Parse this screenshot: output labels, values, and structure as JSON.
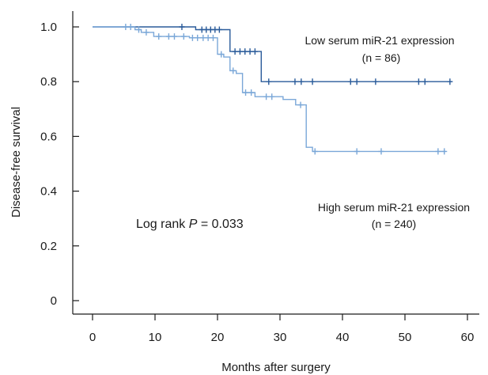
{
  "chart_data": {
    "type": "line",
    "xlabel": "Months after surgery",
    "ylabel": "Disease-free survival",
    "xlim": [
      0,
      60
    ],
    "ylim": [
      0,
      1.0
    ],
    "xticks": [
      0,
      10,
      20,
      30,
      40,
      50,
      60
    ],
    "yticks": [
      {
        "value": 0,
        "label": "0"
      },
      {
        "value": 0.2,
        "label": "0.2"
      },
      {
        "value": 0.4,
        "label": "0.4"
      },
      {
        "value": 0.6,
        "label": "0.6"
      },
      {
        "value": 0.8,
        "label": "0.8"
      },
      {
        "value": 1.0,
        "label": "1.0"
      }
    ],
    "grid": false,
    "annotations": {
      "logrank_prefix": "Log rank ",
      "logrank_p": "P",
      "logrank_suffix": " = 0.033"
    },
    "series": [
      {
        "name": "Low serum miR-21 expression",
        "n_label": "(n = 86)",
        "color": "#2a5b9a",
        "steps": [
          [
            0,
            1.0
          ],
          [
            16.5,
            1.0
          ],
          [
            16.5,
            0.99
          ],
          [
            22,
            0.99
          ],
          [
            22,
            0.91
          ],
          [
            27,
            0.91
          ],
          [
            27,
            0.8
          ],
          [
            57.5,
            0.8
          ]
        ],
        "censors": [
          [
            14.3,
            1.0
          ],
          [
            17.5,
            0.99
          ],
          [
            18.2,
            0.99
          ],
          [
            18.9,
            0.99
          ],
          [
            19.6,
            0.99
          ],
          [
            20.3,
            0.99
          ],
          [
            22.8,
            0.91
          ],
          [
            23.6,
            0.91
          ],
          [
            24.4,
            0.91
          ],
          [
            25.2,
            0.91
          ],
          [
            26.0,
            0.91
          ],
          [
            28.2,
            0.8
          ],
          [
            32.4,
            0.8
          ],
          [
            33.4,
            0.8
          ],
          [
            35.2,
            0.8
          ],
          [
            41.3,
            0.8
          ],
          [
            42.3,
            0.8
          ],
          [
            45.3,
            0.8
          ],
          [
            52.2,
            0.8
          ],
          [
            53.2,
            0.8
          ],
          [
            57.2,
            0.8
          ]
        ]
      },
      {
        "name": "High serum miR-21 expression",
        "n_label": "(n = 240)",
        "color": "#7aa7d8",
        "steps": [
          [
            0,
            1.0
          ],
          [
            6.8,
            1.0
          ],
          [
            6.8,
            0.99
          ],
          [
            7.8,
            0.99
          ],
          [
            7.8,
            0.98
          ],
          [
            9.8,
            0.98
          ],
          [
            9.8,
            0.965
          ],
          [
            15.5,
            0.965
          ],
          [
            15.5,
            0.96
          ],
          [
            20.0,
            0.96
          ],
          [
            20.0,
            0.9
          ],
          [
            21.0,
            0.9
          ],
          [
            21.0,
            0.89
          ],
          [
            22.0,
            0.89
          ],
          [
            22.0,
            0.84
          ],
          [
            23.0,
            0.84
          ],
          [
            23.0,
            0.83
          ],
          [
            24.0,
            0.83
          ],
          [
            24.0,
            0.76
          ],
          [
            26.0,
            0.76
          ],
          [
            26.0,
            0.745
          ],
          [
            30.5,
            0.745
          ],
          [
            30.5,
            0.735
          ],
          [
            32.5,
            0.735
          ],
          [
            32.5,
            0.715
          ],
          [
            34.2,
            0.715
          ],
          [
            34.2,
            0.56
          ],
          [
            35.2,
            0.56
          ],
          [
            35.2,
            0.545
          ],
          [
            56.5,
            0.545
          ]
        ],
        "censors": [
          [
            5.3,
            1.0
          ],
          [
            6.1,
            1.0
          ],
          [
            7.4,
            0.99
          ],
          [
            8.6,
            0.98
          ],
          [
            10.6,
            0.965
          ],
          [
            12.2,
            0.965
          ],
          [
            13.1,
            0.965
          ],
          [
            14.6,
            0.965
          ],
          [
            16.0,
            0.96
          ],
          [
            16.8,
            0.96
          ],
          [
            17.7,
            0.96
          ],
          [
            18.5,
            0.96
          ],
          [
            19.3,
            0.96
          ],
          [
            20.6,
            0.9
          ],
          [
            22.5,
            0.84
          ],
          [
            24.5,
            0.76
          ],
          [
            25.4,
            0.76
          ],
          [
            27.8,
            0.745
          ],
          [
            28.7,
            0.745
          ],
          [
            33.3,
            0.715
          ],
          [
            35.6,
            0.545
          ],
          [
            42.3,
            0.545
          ],
          [
            46.2,
            0.545
          ],
          [
            55.3,
            0.545
          ],
          [
            56.3,
            0.545
          ]
        ]
      }
    ]
  }
}
